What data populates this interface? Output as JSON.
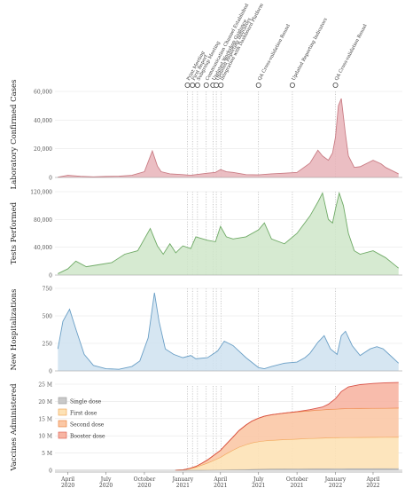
{
  "chart_data": [
    {
      "type": "area",
      "ylabel": "Laboratory Confirmed Cases",
      "ylim": [
        0,
        60000
      ],
      "yticks": [
        0,
        20000,
        40000,
        60000
      ],
      "ytick_labels": [
        "0",
        "20,000",
        "40,000",
        "60,000"
      ],
      "color": "#e8b3b8",
      "stroke": "#c97c84",
      "x": [
        "2020-03-08",
        "2020-04-01",
        "2020-05-01",
        "2020-06-01",
        "2020-07-01",
        "2020-08-01",
        "2020-09-01",
        "2020-10-01",
        "2020-10-20",
        "2020-11-01",
        "2020-11-10",
        "2020-12-01",
        "2021-01-01",
        "2021-01-20",
        "2021-02-01",
        "2021-03-01",
        "2021-03-20",
        "2021-04-01",
        "2021-04-15",
        "2021-05-01",
        "2021-06-01",
        "2021-07-01",
        "2021-08-01",
        "2021-09-01",
        "2021-10-01",
        "2021-11-01",
        "2021-11-20",
        "2021-12-01",
        "2021-12-15",
        "2021-12-25",
        "2022-01-01",
        "2022-01-08",
        "2022-01-15",
        "2022-01-25",
        "2022-02-01",
        "2022-02-15",
        "2022-03-01",
        "2022-04-01",
        "2022-04-20",
        "2022-05-01",
        "2022-06-01"
      ],
      "y": [
        200,
        1500,
        800,
        400,
        700,
        900,
        1500,
        4000,
        18500,
        8000,
        4000,
        2500,
        2000,
        1500,
        2000,
        3000,
        3500,
        5500,
        4000,
        3500,
        2000,
        1800,
        2500,
        3000,
        3500,
        10000,
        19000,
        15000,
        12000,
        17000,
        28000,
        50000,
        55000,
        30000,
        15000,
        7000,
        7500,
        12000,
        9500,
        7000,
        2500
      ]
    },
    {
      "type": "area",
      "ylabel": "Tests Performed",
      "ylim": [
        0,
        120000
      ],
      "yticks": [
        0,
        40000,
        80000,
        120000
      ],
      "ytick_labels": [
        "0",
        "40,000",
        "80,000",
        "120,000"
      ],
      "color": "#cfe6c9",
      "stroke": "#6faa66",
      "x": [
        "2020-03-08",
        "2020-04-01",
        "2020-04-20",
        "2020-05-15",
        "2020-06-15",
        "2020-07-15",
        "2020-08-15",
        "2020-09-15",
        "2020-10-15",
        "2020-11-01",
        "2020-11-15",
        "2020-12-01",
        "2020-12-15",
        "2021-01-01",
        "2021-01-20",
        "2021-02-01",
        "2021-03-01",
        "2021-03-20",
        "2021-04-01",
        "2021-04-15",
        "2021-05-01",
        "2021-06-01",
        "2021-07-01",
        "2021-07-15",
        "2021-08-01",
        "2021-09-01",
        "2021-10-01",
        "2021-11-01",
        "2021-11-20",
        "2021-12-01",
        "2021-12-15",
        "2021-12-25",
        "2022-01-01",
        "2022-01-10",
        "2022-01-20",
        "2022-02-01",
        "2022-02-15",
        "2022-03-01",
        "2022-04-01",
        "2022-05-01",
        "2022-06-01"
      ],
      "y": [
        2000,
        9000,
        20000,
        12000,
        15000,
        18000,
        30000,
        35000,
        67000,
        42000,
        30000,
        45000,
        32000,
        42000,
        38000,
        55000,
        50000,
        48000,
        70000,
        55000,
        52000,
        55000,
        65000,
        75000,
        52000,
        45000,
        60000,
        85000,
        105000,
        118000,
        80000,
        75000,
        95000,
        118000,
        100000,
        60000,
        35000,
        30000,
        35000,
        25000,
        10000
      ]
    },
    {
      "type": "area",
      "ylabel": "New Hospitalizations",
      "ylim": [
        0,
        750
      ],
      "yticks": [
        0,
        250,
        500,
        750
      ],
      "ytick_labels": [
        "0",
        "250",
        "500",
        "750"
      ],
      "color": "#cfe2f0",
      "stroke": "#6a9fc6",
      "x": [
        "2020-03-08",
        "2020-03-20",
        "2020-04-05",
        "2020-04-20",
        "2020-05-10",
        "2020-06-01",
        "2020-07-01",
        "2020-08-01",
        "2020-09-01",
        "2020-09-20",
        "2020-10-10",
        "2020-10-25",
        "2020-11-05",
        "2020-11-20",
        "2020-12-10",
        "2021-01-01",
        "2021-01-20",
        "2021-02-01",
        "2021-03-01",
        "2021-03-25",
        "2021-04-10",
        "2021-05-01",
        "2021-06-01",
        "2021-07-01",
        "2021-07-15",
        "2021-08-01",
        "2021-09-01",
        "2021-10-01",
        "2021-10-20",
        "2021-11-01",
        "2021-11-20",
        "2021-12-05",
        "2021-12-20",
        "2022-01-05",
        "2022-01-15",
        "2022-01-25",
        "2022-02-10",
        "2022-03-01",
        "2022-03-25",
        "2022-04-10",
        "2022-04-25",
        "2022-05-15",
        "2022-06-01"
      ],
      "y": [
        200,
        450,
        560,
        380,
        150,
        50,
        20,
        15,
        40,
        90,
        300,
        710,
        450,
        200,
        150,
        120,
        140,
        110,
        120,
        180,
        270,
        230,
        120,
        30,
        20,
        40,
        70,
        80,
        120,
        160,
        260,
        320,
        200,
        150,
        320,
        360,
        230,
        140,
        200,
        220,
        200,
        130,
        70
      ]
    },
    {
      "type": "area",
      "stacked": true,
      "ylabel": "Vaccines Administered",
      "ylim": [
        0,
        25000000
      ],
      "yticks": [
        0,
        5000000,
        10000000,
        15000000,
        20000000,
        25000000
      ],
      "ytick_labels": [
        "0",
        "5 M",
        "10 M",
        "15 M",
        "20 M",
        "25 M"
      ],
      "legend_position": "top-left",
      "x": [
        "2020-12-14",
        "2021-01-01",
        "2021-01-15",
        "2021-02-01",
        "2021-02-15",
        "2021-03-01",
        "2021-03-15",
        "2021-04-01",
        "2021-04-15",
        "2021-05-01",
        "2021-05-15",
        "2021-06-01",
        "2021-06-15",
        "2021-07-01",
        "2021-07-15",
        "2021-08-01",
        "2021-09-01",
        "2021-10-01",
        "2021-11-01",
        "2021-12-01",
        "2021-12-15",
        "2022-01-01",
        "2022-01-15",
        "2022-02-01",
        "2022-03-01",
        "2022-04-01",
        "2022-05-01",
        "2022-06-01"
      ],
      "series": [
        {
          "name": "Single dose",
          "color": "#c9c9c9",
          "stroke": "#9a9a9a",
          "values": [
            0,
            0,
            0,
            0,
            0,
            10000,
            40000,
            80000,
            120000,
            160000,
            200000,
            240000,
            280000,
            320000,
            350000,
            380000,
            410000,
            430000,
            450000,
            470000,
            480000,
            490000,
            495000,
            500000,
            505000,
            510000,
            515000,
            520000
          ]
        },
        {
          "name": "First dose",
          "color": "#fde2b6",
          "stroke": "#f0a04b",
          "values": [
            0,
            100000,
            400000,
            900000,
            1500000,
            2100000,
            2800000,
            3700000,
            4700000,
            5700000,
            6500000,
            7200000,
            7700000,
            8000000,
            8200000,
            8350000,
            8500000,
            8650000,
            8800000,
            8900000,
            8950000,
            9000000,
            9020000,
            9040000,
            9060000,
            9080000,
            9090000,
            9100000
          ]
        },
        {
          "name": "Second dose",
          "color": "#fbc8a6",
          "stroke": "#ea7a2e",
          "values": [
            0,
            0,
            50000,
            200000,
            500000,
            900000,
            1400000,
            2000000,
            2800000,
            3800000,
            4800000,
            5700000,
            6300000,
            6800000,
            7150000,
            7400000,
            7700000,
            7900000,
            8050000,
            8200000,
            8250000,
            8300000,
            8350000,
            8380000,
            8410000,
            8430000,
            8450000,
            8470000
          ]
        },
        {
          "name": "Booster dose",
          "color": "#f7b5a3",
          "stroke": "#d9544a",
          "values": [
            0,
            0,
            0,
            0,
            0,
            0,
            0,
            0,
            0,
            0,
            0,
            0,
            0,
            0,
            0,
            0,
            0,
            50000,
            300000,
            800000,
            1500000,
            3000000,
            5000000,
            6300000,
            6900000,
            7200000,
            7350000,
            7400000
          ]
        }
      ]
    }
  ],
  "x_axis": {
    "ticks": [
      "2020-04-01",
      "2020-07-01",
      "2020-10-01",
      "2021-01-01",
      "2021-04-01",
      "2021-07-01",
      "2021-10-01",
      "2022-01-01",
      "2022-04-01"
    ],
    "tick_labels": [
      [
        "April",
        "2020"
      ],
      [
        "July",
        "2020"
      ],
      [
        "October",
        "2020"
      ],
      [
        "January",
        "2021"
      ],
      [
        "April",
        "2021"
      ],
      [
        "July",
        "2021"
      ],
      [
        "October",
        "2021"
      ],
      [
        "January",
        "2022"
      ],
      [
        "April",
        "2022"
      ]
    ],
    "range": [
      "2020-03-01",
      "2022-06-10"
    ]
  },
  "annotations": [
    {
      "date": "2021-01-12",
      "label": "Print Meeting"
    },
    {
      "date": "2021-01-24",
      "label": "First Report"
    },
    {
      "date": "2021-02-05",
      "label": "Subgroup Meeting"
    },
    {
      "date": "2021-02-26",
      "label": "Communication Channel Established"
    },
    {
      "date": "2021-03-14",
      "label": "Updated Workshop Guidance"
    },
    {
      "date": "2021-03-22",
      "label": "Updated Reporting Indicators"
    },
    {
      "date": "2021-04-02",
      "label": "Integration with Dashboard Platform"
    },
    {
      "date": "2021-07-01",
      "label": "QA Cross-validation Round"
    },
    {
      "date": "2021-09-20",
      "label": "Updated Reporting Indicators"
    },
    {
      "date": "2022-01-01",
      "label": "QA Cross-validation Round"
    }
  ]
}
